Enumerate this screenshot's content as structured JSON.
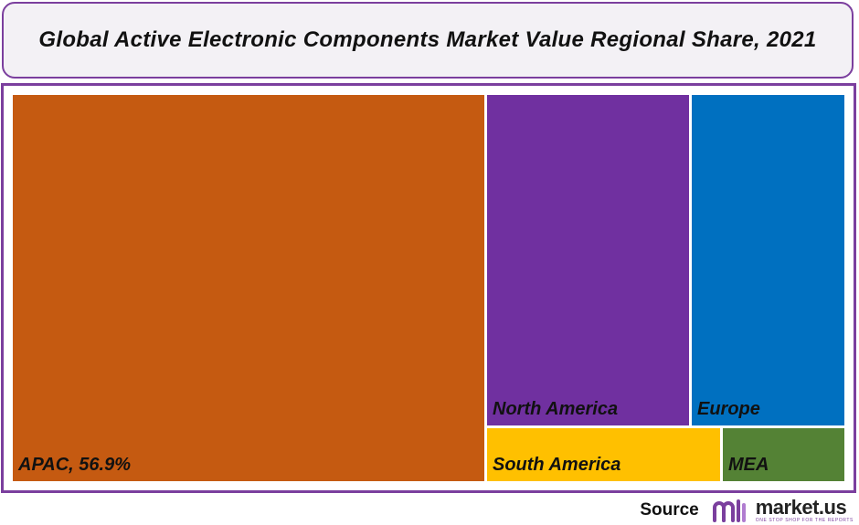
{
  "chart_data": {
    "type": "treemap",
    "title": "Global Active Electronic Components Market Value Regional Share, 2021",
    "tiles": [
      {
        "label": "APAC, 56.9%",
        "region": "APAC",
        "share": 56.9,
        "color": "#c55a11"
      },
      {
        "label": "North America",
        "region": "North America",
        "color": "#7030a0"
      },
      {
        "label": "Europe",
        "region": "Europe",
        "color": "#0070c0"
      },
      {
        "label": "South America",
        "region": "South America",
        "color": "#ffc000"
      },
      {
        "label": "MEA",
        "region": "MEA",
        "color": "#548235"
      }
    ]
  },
  "footer": {
    "source_label": "Source",
    "logo_text": "market.us",
    "logo_tagline": "ONE STOP SHOP FOR THE REPORTS"
  },
  "colors": {
    "frame": "#7b3f9e",
    "title_background": "#f3f1f5"
  }
}
